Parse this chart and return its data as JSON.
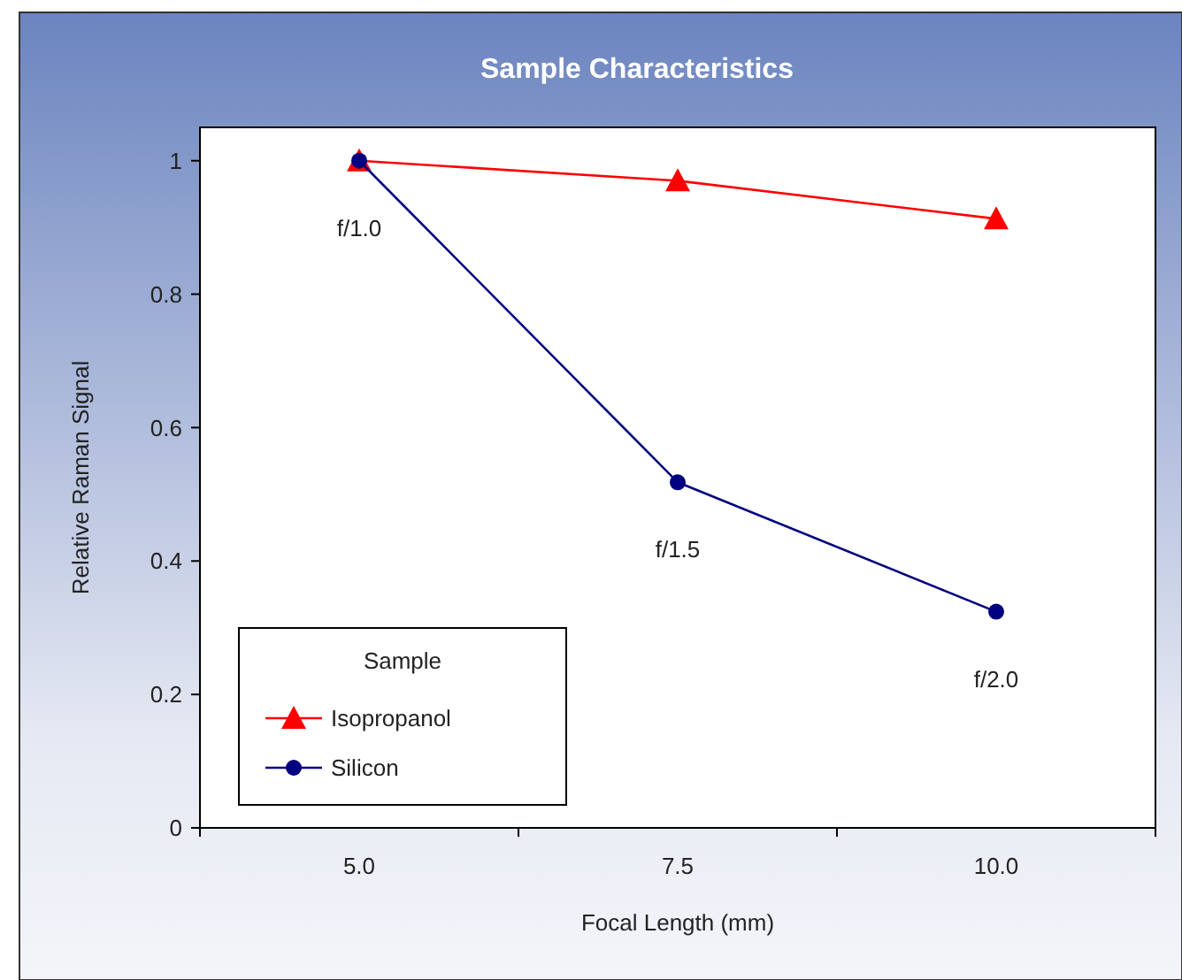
{
  "chart_data": {
    "type": "line",
    "title": "Sample Characteristics",
    "xlabel": "Focal Length (mm)",
    "ylabel": "Relative Raman Signal",
    "legend_title": "Sample",
    "categories": [
      "5.0",
      "7.5",
      "10.0"
    ],
    "series": [
      {
        "name": "Isopropanol",
        "color": "#ff0000",
        "marker": "triangle",
        "values": [
          1.0,
          0.97,
          0.913
        ]
      },
      {
        "name": "Silicon",
        "color": "#000080",
        "marker": "circle",
        "values": [
          1.0,
          0.518,
          0.324
        ]
      }
    ],
    "ylim": [
      0,
      1.05
    ],
    "yticks": [
      0,
      0.2,
      0.4,
      0.6,
      0.8,
      1
    ],
    "grid": false,
    "legend": "bottom left",
    "annotations": [
      {
        "text": "f/1.0",
        "x": "5.0",
        "y": 1.0
      },
      {
        "text": "f/1.5",
        "x": "7.5",
        "y": 0.518
      },
      {
        "text": "f/2.0",
        "x": "10.0",
        "y": 0.324
      }
    ]
  }
}
